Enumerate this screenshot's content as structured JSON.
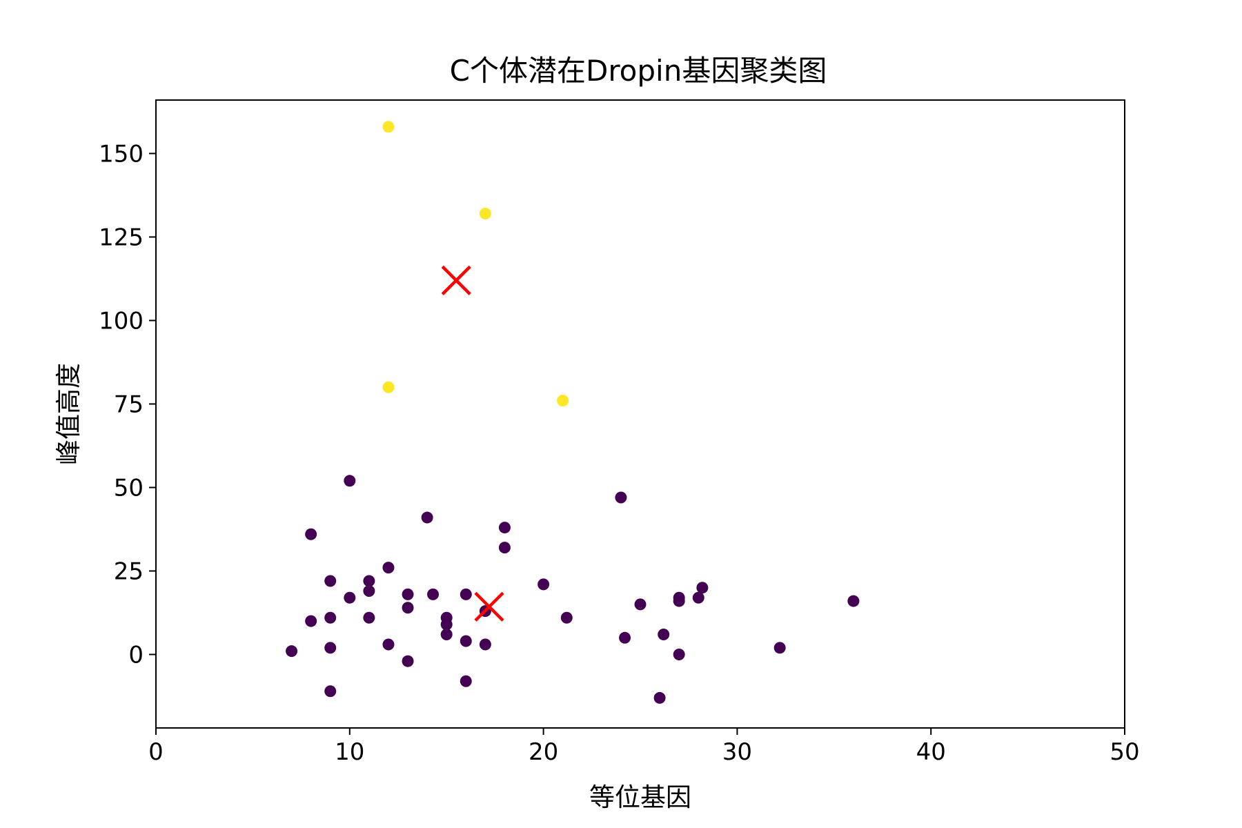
{
  "chart_data": {
    "type": "scatter",
    "title": "C个体潜在Dropin基因聚类图",
    "xlabel": "等位基因",
    "ylabel": "峰值高度",
    "xlim": [
      0,
      50
    ],
    "ylim": [
      -22,
      166
    ],
    "xticks": [
      0,
      10,
      20,
      30,
      40,
      50
    ],
    "yticks": [
      0,
      25,
      50,
      75,
      100,
      125,
      150
    ],
    "grid": false,
    "legend": "none",
    "series": [
      {
        "color": "#440154",
        "points": [
          [
            7,
            1
          ],
          [
            8,
            36
          ],
          [
            8,
            10
          ],
          [
            9,
            22
          ],
          [
            9,
            11
          ],
          [
            9,
            2
          ],
          [
            9,
            -11
          ],
          [
            10,
            52
          ],
          [
            10,
            17
          ],
          [
            11,
            22
          ],
          [
            11,
            19
          ],
          [
            11,
            11
          ],
          [
            12,
            26
          ],
          [
            12,
            3
          ],
          [
            13,
            18
          ],
          [
            13,
            14
          ],
          [
            13,
            -2
          ],
          [
            14,
            41
          ],
          [
            14.3,
            18
          ],
          [
            15,
            11
          ],
          [
            15,
            9
          ],
          [
            15,
            6
          ],
          [
            16,
            18
          ],
          [
            16,
            4
          ],
          [
            16,
            -8
          ],
          [
            17,
            13
          ],
          [
            17,
            3
          ],
          [
            18,
            38
          ],
          [
            18,
            32
          ],
          [
            20,
            21
          ],
          [
            21.2,
            11
          ],
          [
            24,
            47
          ],
          [
            24.2,
            5
          ],
          [
            25,
            15
          ],
          [
            26,
            -13
          ],
          [
            26.2,
            6
          ],
          [
            27,
            17
          ],
          [
            27,
            16
          ],
          [
            27,
            0
          ],
          [
            28,
            17
          ],
          [
            28.2,
            20
          ],
          [
            32.2,
            2
          ],
          [
            36,
            16
          ]
        ]
      },
      {
        "color": "#fde725",
        "points": [
          [
            12,
            158
          ],
          [
            17,
            132
          ],
          [
            12,
            80
          ],
          [
            21,
            76
          ]
        ]
      }
    ],
    "centroids": {
      "color": "#ff0000",
      "marker": "x",
      "points": [
        [
          15.5,
          112
        ],
        [
          17.2,
          14.3
        ]
      ]
    }
  }
}
